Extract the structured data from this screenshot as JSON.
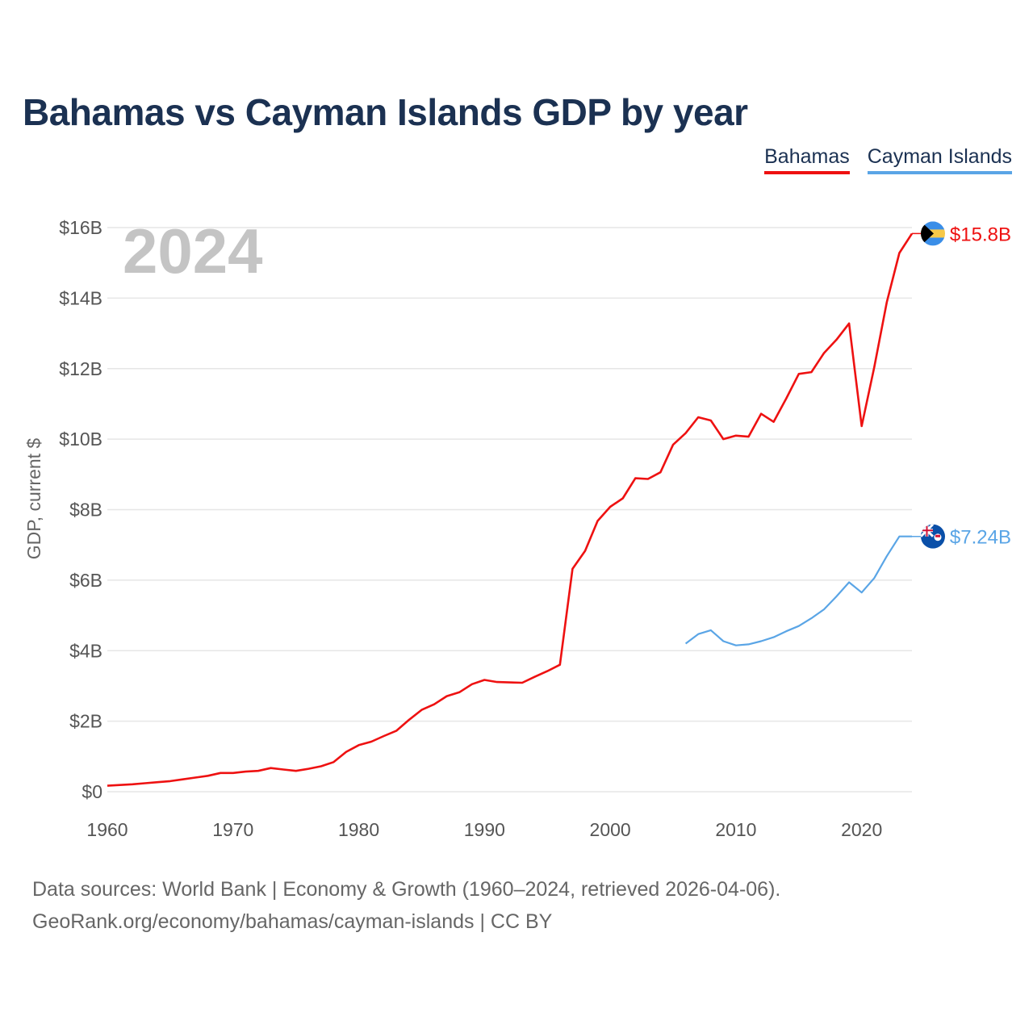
{
  "page": {
    "title": "Bahamas vs Cayman Islands GDP by year",
    "source_line1": "Data sources: World Bank | Economy & Growth (1960–2024, retrieved 2026-04-06).",
    "source_line2": "GeoRank.org/economy/bahamas/cayman-islands | CC BY"
  },
  "legend": {
    "bahamas": "Bahamas",
    "cayman": "Cayman Islands"
  },
  "colors": {
    "bahamas": "#ee1111",
    "cayman": "#5aa5e6",
    "grid": "#e6e6e6",
    "flag_bahamas_aqua": "#3a8ee8",
    "flag_bahamas_gold": "#f7c948",
    "flag_cayman_blue": "#0a4fa8",
    "flag_cayman_red": "#d21034"
  },
  "chart_data": {
    "type": "line",
    "title": "Bahamas vs Cayman Islands GDP by year",
    "ylabel": "GDP, current $",
    "xlabel": "",
    "current_year_label": "2024",
    "xlim": [
      1960,
      2024
    ],
    "ylim": [
      0,
      16
    ],
    "y_unit": "billion USD",
    "yticks": [
      0,
      2,
      4,
      6,
      8,
      10,
      12,
      14,
      16
    ],
    "ytick_labels": [
      "$0",
      "$2B",
      "$4B",
      "$6B",
      "$8B",
      "$10B",
      "$12B",
      "$14B",
      "$16B"
    ],
    "xticks": [
      1960,
      1970,
      1980,
      1990,
      2000,
      2010,
      2020
    ],
    "xtick_labels": [
      "1960",
      "1970",
      "1980",
      "1990",
      "2000",
      "2010",
      "2020"
    ],
    "grid": true,
    "legend_position": "top-right",
    "series": [
      {
        "name": "Bahamas",
        "end_label": "$15.8B",
        "x": [
          1960,
          1961,
          1962,
          1963,
          1964,
          1965,
          1966,
          1967,
          1968,
          1969,
          1970,
          1971,
          1972,
          1973,
          1974,
          1975,
          1976,
          1977,
          1978,
          1979,
          1980,
          1981,
          1982,
          1983,
          1984,
          1985,
          1986,
          1987,
          1988,
          1989,
          1990,
          1991,
          1992,
          1993,
          1994,
          1995,
          1996,
          1997,
          1998,
          1999,
          2000,
          2001,
          2002,
          2003,
          2004,
          2005,
          2006,
          2007,
          2008,
          2009,
          2010,
          2011,
          2012,
          2013,
          2014,
          2015,
          2016,
          2017,
          2018,
          2019,
          2020,
          2021,
          2022,
          2023,
          2024
        ],
        "values": [
          0.17,
          0.19,
          0.21,
          0.24,
          0.27,
          0.3,
          0.35,
          0.4,
          0.45,
          0.53,
          0.53,
          0.57,
          0.59,
          0.67,
          0.63,
          0.59,
          0.65,
          0.72,
          0.84,
          1.13,
          1.32,
          1.42,
          1.58,
          1.73,
          2.04,
          2.32,
          2.48,
          2.71,
          2.82,
          3.05,
          3.17,
          3.11,
          3.1,
          3.09,
          3.26,
          3.42,
          3.6,
          6.32,
          6.83,
          7.68,
          8.08,
          8.32,
          8.89,
          8.87,
          9.06,
          9.84,
          10.17,
          10.62,
          10.53,
          10.0,
          10.1,
          10.07,
          10.72,
          10.49,
          11.15,
          11.85,
          11.9,
          12.44,
          12.82,
          13.28,
          10.37,
          12.04,
          13.88,
          15.28,
          15.83
        ]
      },
      {
        "name": "Cayman Islands",
        "end_label": "$7.24B",
        "x": [
          2006,
          2007,
          2008,
          2009,
          2010,
          2011,
          2012,
          2013,
          2014,
          2015,
          2016,
          2017,
          2018,
          2019,
          2020,
          2021,
          2022,
          2023,
          2024
        ],
        "values": [
          4.2,
          4.47,
          4.58,
          4.27,
          4.15,
          4.18,
          4.27,
          4.38,
          4.55,
          4.7,
          4.92,
          5.17,
          5.54,
          5.94,
          5.65,
          6.06,
          6.68,
          7.24,
          7.24
        ]
      }
    ]
  }
}
